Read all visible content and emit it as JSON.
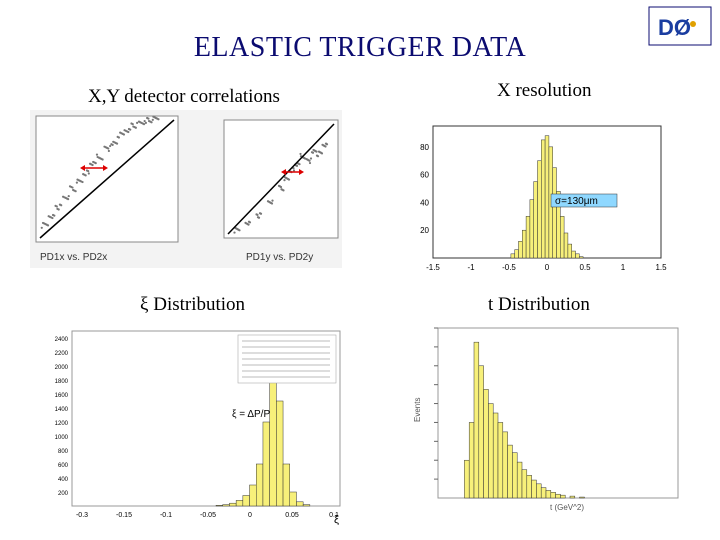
{
  "slide": {
    "title": "ELASTIC TRIGGER DATA",
    "captions": {
      "xy": "X,Y detector correlations",
      "xres": "X resolution",
      "xi": "ξ Distribution",
      "t": "t Distribution"
    },
    "logo_text": "DØ"
  },
  "chart_data": [
    {
      "type": "scatter",
      "title": "",
      "panel_label": "PD1x vs. PD2x",
      "series": [
        {
          "x": [
            0.05,
            0.1,
            0.15,
            0.2,
            0.25,
            0.3,
            0.35,
            0.4,
            0.45,
            0.5,
            0.55,
            0.6,
            0.65,
            0.7,
            0.75,
            0.8,
            0.85
          ],
          "y": [
            0.12,
            0.2,
            0.27,
            0.35,
            0.42,
            0.48,
            0.55,
            0.62,
            0.68,
            0.75,
            0.8,
            0.86,
            0.9,
            0.94,
            0.96,
            0.98,
            0.99
          ]
        }
      ]
    },
    {
      "type": "scatter",
      "title": "",
      "panel_label": "PD1y vs. PD2y",
      "series": [
        {
          "x": [
            0.1,
            0.2,
            0.3,
            0.4,
            0.5,
            0.55,
            0.6,
            0.65,
            0.7,
            0.75,
            0.8,
            0.85,
            0.9
          ],
          "y": [
            0.05,
            0.12,
            0.18,
            0.3,
            0.42,
            0.5,
            0.58,
            0.62,
            0.7,
            0.66,
            0.75,
            0.72,
            0.8
          ]
        }
      ]
    },
    {
      "type": "bar",
      "title": "",
      "annotation": "σ=130μm",
      "x_ticks": [
        "-1.5",
        "-1",
        "-0.5",
        "0",
        "0.5",
        "1",
        "1.5"
      ],
      "y_ticks": [
        "20",
        "40",
        "60",
        "80"
      ],
      "xlim": [
        -1.5,
        1.5
      ],
      "ylim": [
        0,
        95
      ],
      "x": [
        -0.45,
        -0.4,
        -0.35,
        -0.3,
        -0.25,
        -0.2,
        -0.15,
        -0.1,
        -0.05,
        0,
        0.05,
        0.1,
        0.15,
        0.2,
        0.25,
        0.3,
        0.35,
        0.4,
        0.45
      ],
      "values": [
        3,
        6,
        12,
        20,
        30,
        42,
        55,
        70,
        85,
        88,
        80,
        65,
        48,
        30,
        18,
        10,
        5,
        3,
        1
      ]
    },
    {
      "type": "bar",
      "title": "",
      "formula": "ξ = ΔP/P",
      "x_ticks": [
        "-0.3",
        "-0.15",
        "-0.1",
        "-0.05",
        "0",
        "0.05",
        "0.1"
      ],
      "y_ticks": [
        "200",
        "400",
        "600",
        "800",
        "1000",
        "1200",
        "1400",
        "1600",
        "1800",
        "2000",
        "2200",
        "2400"
      ],
      "xlabel": "ξ",
      "ylim": [
        0,
        2500
      ],
      "x": [
        -0.08,
        -0.07,
        -0.06,
        -0.05,
        -0.04,
        -0.03,
        -0.02,
        -0.01,
        0,
        0.01,
        0.02,
        0.03,
        0.04,
        0.05
      ],
      "values": [
        10,
        20,
        40,
        80,
        150,
        300,
        600,
        1200,
        2100,
        1500,
        600,
        200,
        60,
        20
      ]
    },
    {
      "type": "bar",
      "title": "",
      "xlabel": "t (GeV^2)",
      "ylabel": "Events",
      "ylim": [
        0,
        1800
      ],
      "x": [
        0.6,
        0.7,
        0.8,
        0.9,
        1.0,
        1.1,
        1.2,
        1.3,
        1.4,
        1.5,
        1.6,
        1.7,
        1.8,
        1.9,
        2.0,
        2.1,
        2.2,
        2.3,
        2.4,
        2.5,
        2.6,
        2.8,
        3.0
      ],
      "values": [
        400,
        800,
        1650,
        1400,
        1150,
        1000,
        900,
        800,
        700,
        560,
        480,
        380,
        300,
        240,
        190,
        150,
        110,
        80,
        60,
        40,
        30,
        20,
        10
      ]
    }
  ]
}
